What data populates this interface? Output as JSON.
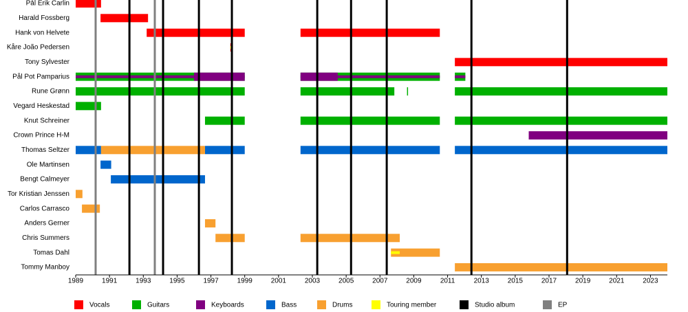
{
  "chart_data": {
    "type": "timeline",
    "categories": [
      "Pål Erik Carlin",
      "Harald Fossberg",
      "Hank von Helvete",
      "Kåre João Pedersen",
      "Tony Sylvester",
      "Pål Pot Pamparius",
      "Rune Grønn",
      "Vegard Heskestad",
      "Knut Schreiner",
      "Crown Prince H-M",
      "Thomas Seltzer",
      "Ole Martinsen",
      "Bengt Calmeyer",
      "Tor Kristian Jenssen",
      "Carlos Carrasco",
      "Anders Gerner",
      "Chris Summers",
      "Tomas Dahl",
      "Tommy Manboy"
    ],
    "xlim": [
      1989,
      2024
    ],
    "xticks": [
      1989,
      1991,
      1993,
      1995,
      1997,
      1999,
      2001,
      2003,
      2005,
      2007,
      2009,
      2011,
      2013,
      2015,
      2017,
      2019,
      2021,
      2023
    ],
    "series": [
      {
        "name": "Vocals",
        "color": "#ff0000",
        "values": [
          {
            "row": 0,
            "start": 1989,
            "end": 1990.5
          },
          {
            "row": 1,
            "start": 1990.47,
            "end": 1993.28
          },
          {
            "row": 2,
            "start": 1993.2,
            "end": 1999
          },
          {
            "row": 2,
            "start": 2002.3,
            "end": 2010.54
          },
          {
            "row": 3,
            "start": 1998.15,
            "end": 1998.3
          },
          {
            "row": 4,
            "start": 2011.43,
            "end": 2024
          }
        ]
      },
      {
        "name": "Guitars",
        "color": "#00b000",
        "values": [
          {
            "row": 5,
            "start": 1989,
            "end": 1999
          },
          {
            "row": 5,
            "start": 2002.3,
            "end": 2010.54
          },
          {
            "row": 5,
            "start": 2011.43,
            "end": 2012.05
          },
          {
            "row": 6,
            "start": 1989,
            "end": 1999
          },
          {
            "row": 6,
            "start": 2002.3,
            "end": 2007.85
          },
          {
            "row": 6,
            "start": 2008.6,
            "end": 2008.66
          },
          {
            "row": 6,
            "start": 2011.43,
            "end": 2024
          },
          {
            "row": 7,
            "start": 1989,
            "end": 1990.5
          },
          {
            "row": 8,
            "start": 1996.65,
            "end": 1999
          },
          {
            "row": 8,
            "start": 2002.3,
            "end": 2010.54
          },
          {
            "row": 8,
            "start": 2011.43,
            "end": 2024
          }
        ]
      },
      {
        "name": "Keyboards",
        "color": "#800080",
        "values": [
          {
            "row": 5,
            "start": 1989,
            "end": 1999,
            "thin": true
          },
          {
            "row": 5,
            "start": 1996,
            "end": 1999
          },
          {
            "row": 5,
            "start": 2002.3,
            "end": 2010.54,
            "thin": true
          },
          {
            "row": 5,
            "start": 2002.3,
            "end": 2004.5
          },
          {
            "row": 5,
            "start": 2011.43,
            "end": 2012.05,
            "thin": true
          },
          {
            "row": 9,
            "start": 2015.8,
            "end": 2024
          }
        ]
      },
      {
        "name": "Bass",
        "color": "#0066cc",
        "values": [
          {
            "row": 10,
            "start": 1989,
            "end": 1990.5
          },
          {
            "row": 10,
            "start": 1996.65,
            "end": 1999
          },
          {
            "row": 10,
            "start": 2002.3,
            "end": 2010.54
          },
          {
            "row": 10,
            "start": 2011.43,
            "end": 2024
          },
          {
            "row": 11,
            "start": 1990.47,
            "end": 1991.1
          },
          {
            "row": 12,
            "start": 1991.08,
            "end": 1996.65
          }
        ]
      },
      {
        "name": "Drums",
        "color": "#f8a030",
        "values": [
          {
            "row": 10,
            "start": 1990.5,
            "end": 1996.65
          },
          {
            "row": 13,
            "start": 1989,
            "end": 1989.4
          },
          {
            "row": 14,
            "start": 1989.37,
            "end": 1990.43
          },
          {
            "row": 15,
            "start": 1996.65,
            "end": 1997.27
          },
          {
            "row": 16,
            "start": 1997.27,
            "end": 1999
          },
          {
            "row": 16,
            "start": 2002.3,
            "end": 2008.17
          },
          {
            "row": 17,
            "start": 2007.65,
            "end": 2010.54
          },
          {
            "row": 18,
            "start": 2011.43,
            "end": 2024
          }
        ]
      },
      {
        "name": "Touring member",
        "color": "#ffff00",
        "values": [
          {
            "row": 3,
            "start": 1998.15,
            "end": 1998.3,
            "thin": true
          },
          {
            "row": 17,
            "start": 2007.65,
            "end": 2008.17,
            "thin": true
          }
        ]
      }
    ],
    "lines": [
      {
        "name": "Studio album",
        "color": "#000000",
        "x": [
          1992.18,
          1994.17,
          1996.29,
          1998.24,
          2003.29,
          2005.29,
          2007.4,
          2012.41,
          2018.07
        ]
      },
      {
        "name": "EP",
        "color": "#808080",
        "x": [
          1990.18,
          1993.68
        ]
      }
    ]
  }
}
